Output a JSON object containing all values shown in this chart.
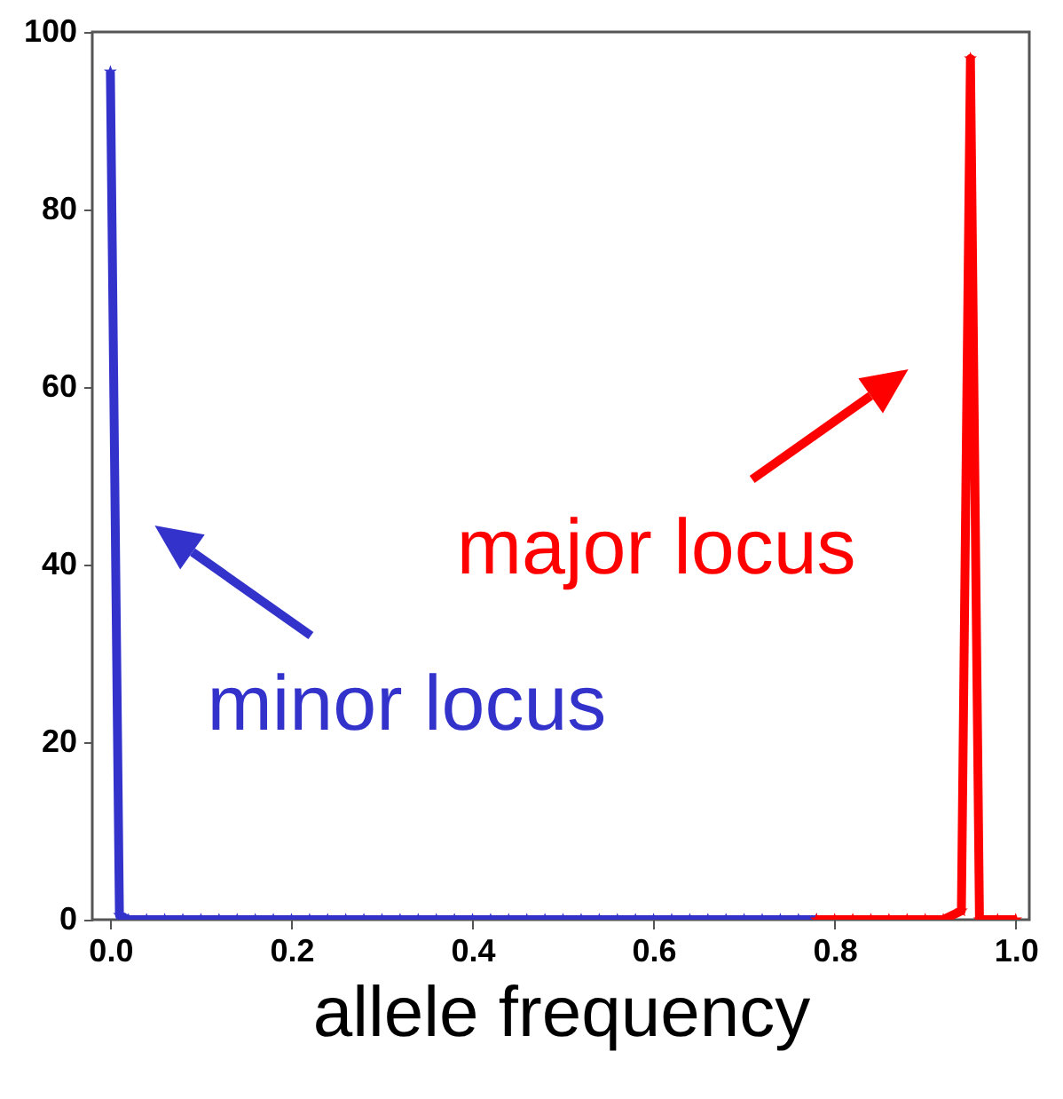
{
  "chart_data": {
    "type": "line",
    "xlabel": "allele frequency",
    "xlim": [
      -0.02,
      1.015
    ],
    "ylim": [
      0,
      100
    ],
    "xticks": [
      {
        "value": 0,
        "label": "0.0"
      },
      {
        "value": 0.2,
        "label": "0.2"
      },
      {
        "value": 0.4,
        "label": "0.4"
      },
      {
        "value": 0.6,
        "label": "0.6"
      },
      {
        "value": 0.8,
        "label": "0.8"
      },
      {
        "value": 1,
        "label": "1.0"
      }
    ],
    "yticks": [
      0,
      20,
      40,
      60,
      80,
      100
    ],
    "grid": false,
    "marker": "star",
    "line_style": "solid",
    "series": [
      {
        "color": "#3333cc",
        "x": [
          0,
          0.01,
          0.02,
          0.04,
          0.06,
          0.08,
          0.1,
          0.12,
          0.14,
          0.16,
          0.18,
          0.2,
          0.22,
          0.24,
          0.26,
          0.28,
          0.3,
          0.32,
          0.34,
          0.36,
          0.38,
          0.4,
          0.42,
          0.44,
          0.46,
          0.48,
          0.5,
          0.52,
          0.54,
          0.56,
          0.58,
          0.6,
          0.62,
          0.64,
          0.66,
          0.68,
          0.7,
          0.72,
          0.74,
          0.76,
          0.78
        ],
        "values": [
          95.5,
          0.5,
          0,
          0,
          0,
          0,
          0,
          0,
          0,
          0,
          0,
          0,
          0,
          0,
          0,
          0,
          0,
          0,
          0,
          0,
          0,
          0,
          0,
          0,
          0,
          0,
          0,
          0,
          0,
          0,
          0,
          0,
          0,
          0,
          0,
          0,
          0,
          0,
          0,
          0,
          0
        ]
      },
      {
        "color": "#ff0000",
        "x": [
          0.78,
          0.8,
          0.82,
          0.84,
          0.86,
          0.88,
          0.9,
          0.92,
          0.94,
          0.95,
          0.96,
          0.98,
          1
        ],
        "values": [
          0,
          0,
          0,
          0,
          0,
          0,
          0,
          0,
          1,
          97,
          0,
          0,
          0
        ]
      }
    ],
    "annotations": [
      "minor locus",
      "major locus"
    ]
  }
}
